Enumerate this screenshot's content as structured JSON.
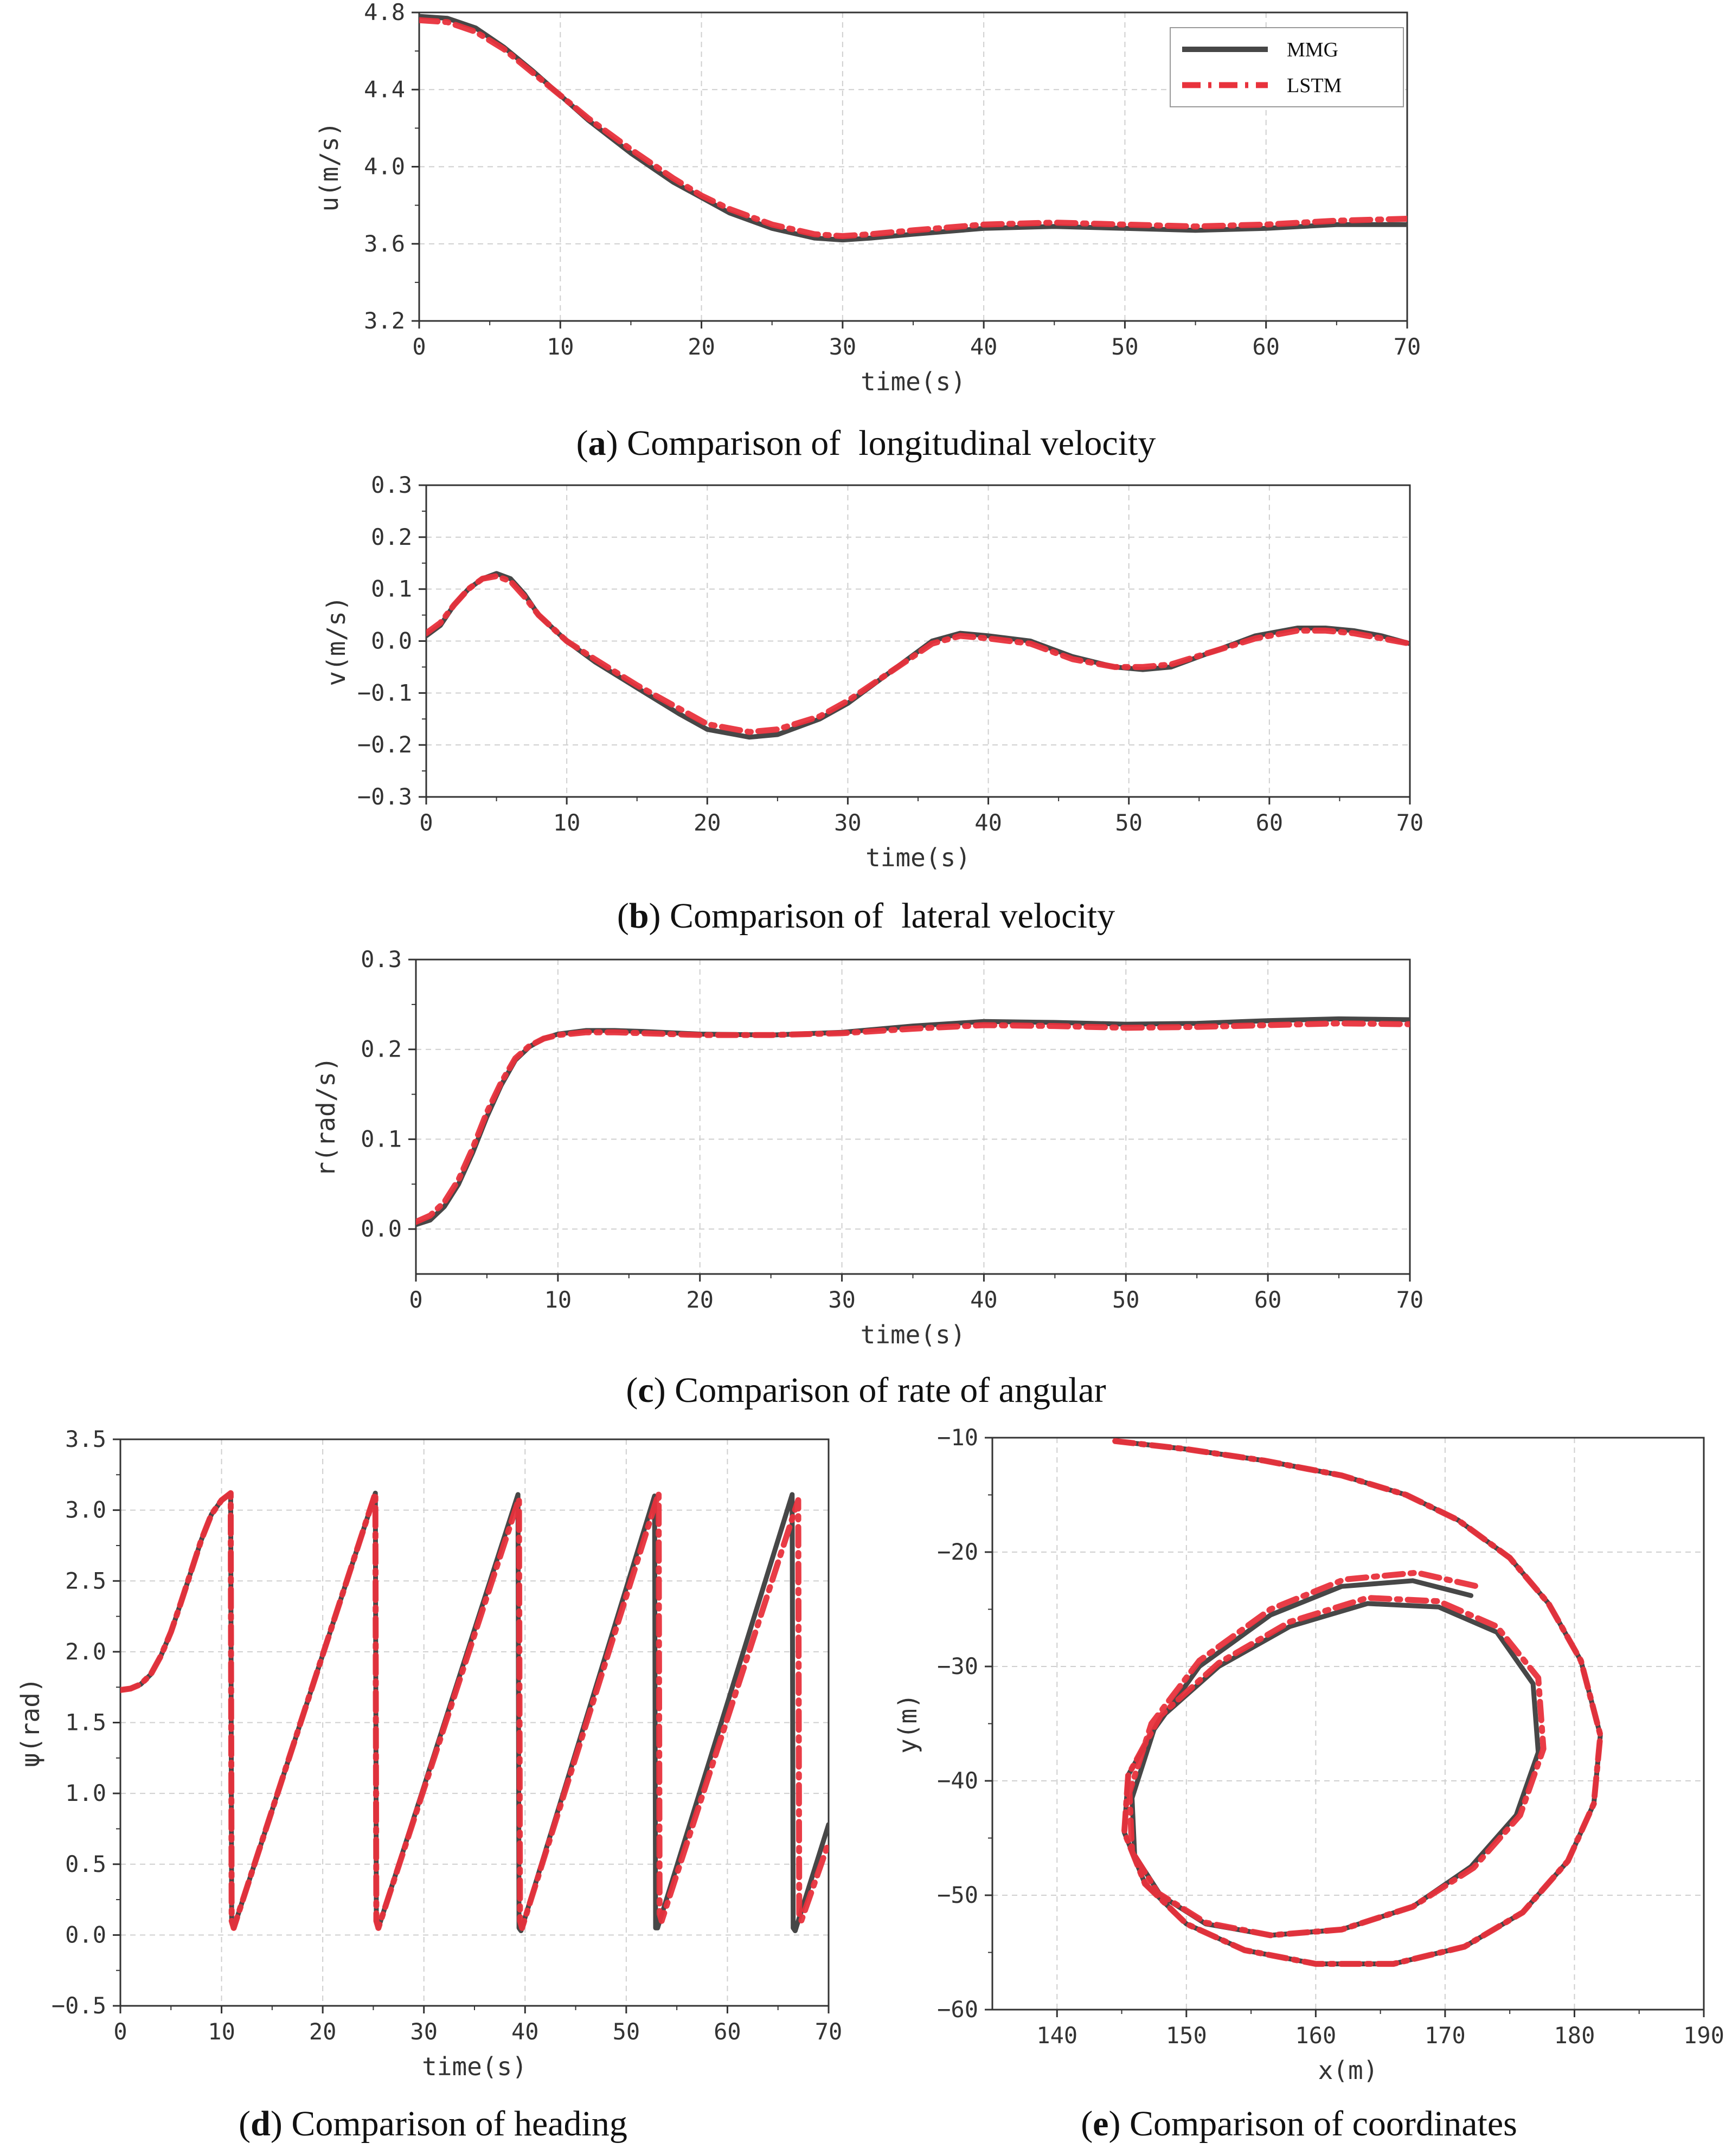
{
  "colors": {
    "mmg": "#474747",
    "lstm": "#e8323c",
    "grid": "#cfcfcf",
    "axis": "#333333"
  },
  "captions": [
    {
      "letter": "a",
      "text": " Comparison of  longitudinal velocity"
    },
    {
      "letter": "b",
      "text": " Comparison of  lateral velocity"
    },
    {
      "letter": "c",
      "text": " Comparison of rate of angular"
    },
    {
      "letter": "d",
      "text": " Comparison of heading"
    },
    {
      "letter": "e",
      "text": " Comparison of coordinates"
    }
  ],
  "chart_data": [
    {
      "type": "line",
      "panel": "a",
      "xlabel": "time(s)",
      "ylabel": "u(m/s)",
      "xlim": [
        0,
        70
      ],
      "ylim": [
        3.2,
        4.8
      ],
      "xticks": [
        0,
        10,
        20,
        30,
        40,
        50,
        60,
        70
      ],
      "yticks": [
        3.2,
        3.6,
        4.0,
        4.4,
        4.8
      ],
      "ytick_labels": [
        "3.2",
        "3.6",
        "4.0",
        "4.4",
        "4.8"
      ],
      "grid": true,
      "legend": "top-right",
      "series": [
        {
          "name": "MMG",
          "style": "solid",
          "x": [
            0,
            2,
            4,
            6,
            8,
            10,
            12,
            15,
            18,
            20,
            22,
            25,
            28,
            30,
            32,
            35,
            40,
            45,
            50,
            55,
            60,
            65,
            70
          ],
          "y": [
            4.78,
            4.77,
            4.72,
            4.62,
            4.5,
            4.37,
            4.24,
            4.07,
            3.92,
            3.84,
            3.76,
            3.68,
            3.63,
            3.62,
            3.63,
            3.65,
            3.68,
            3.69,
            3.68,
            3.67,
            3.68,
            3.7,
            3.7
          ]
        },
        {
          "name": "LSTM",
          "style": "dashdot",
          "x": [
            0,
            2,
            4,
            6,
            8,
            10,
            12,
            15,
            18,
            20,
            22,
            25,
            28,
            30,
            32,
            35,
            40,
            45,
            50,
            55,
            60,
            65,
            70
          ],
          "y": [
            4.76,
            4.75,
            4.7,
            4.61,
            4.49,
            4.37,
            4.25,
            4.09,
            3.94,
            3.85,
            3.78,
            3.7,
            3.65,
            3.64,
            3.65,
            3.67,
            3.7,
            3.71,
            3.7,
            3.69,
            3.7,
            3.72,
            3.73
          ]
        }
      ]
    },
    {
      "type": "line",
      "panel": "b",
      "xlabel": "time(s)",
      "ylabel": "v(m/s)",
      "xlim": [
        0,
        70
      ],
      "ylim": [
        -0.3,
        0.3
      ],
      "xticks": [
        0,
        10,
        20,
        30,
        40,
        50,
        60,
        70
      ],
      "yticks": [
        -0.3,
        -0.2,
        -0.1,
        0.0,
        0.1,
        0.2,
        0.3
      ],
      "ytick_labels": [
        "−0.3",
        "−0.2",
        "−0.1",
        "0.0",
        "0.1",
        "0.2",
        "0.3"
      ],
      "grid": true,
      "series": [
        {
          "name": "MMG",
          "style": "solid",
          "x": [
            0,
            1,
            2,
            3,
            4,
            5,
            6,
            7,
            8,
            10,
            12,
            15,
            18,
            20,
            22,
            23,
            25,
            28,
            30,
            33,
            36,
            38,
            40,
            43,
            46,
            49,
            51,
            53,
            56,
            59,
            62,
            64,
            66,
            68,
            70
          ],
          "y": [
            0.01,
            0.03,
            0.07,
            0.1,
            0.12,
            0.13,
            0.12,
            0.09,
            0.05,
            0.0,
            -0.04,
            -0.09,
            -0.14,
            -0.17,
            -0.18,
            -0.185,
            -0.18,
            -0.15,
            -0.12,
            -0.06,
            0.0,
            0.015,
            0.01,
            0.0,
            -0.03,
            -0.05,
            -0.055,
            -0.05,
            -0.02,
            0.01,
            0.025,
            0.025,
            0.02,
            0.01,
            -0.005
          ]
        },
        {
          "name": "LSTM",
          "style": "dashdot",
          "x": [
            0,
            1,
            2,
            3,
            4,
            5,
            6,
            7,
            8,
            10,
            12,
            15,
            18,
            20,
            22,
            23,
            25,
            28,
            30,
            33,
            36,
            38,
            40,
            43,
            46,
            49,
            51,
            53,
            56,
            59,
            62,
            64,
            66,
            68,
            70
          ],
          "y": [
            0.015,
            0.035,
            0.07,
            0.1,
            0.12,
            0.125,
            0.115,
            0.085,
            0.05,
            0.0,
            -0.035,
            -0.085,
            -0.13,
            -0.16,
            -0.17,
            -0.175,
            -0.17,
            -0.145,
            -0.115,
            -0.06,
            -0.005,
            0.01,
            0.005,
            -0.005,
            -0.035,
            -0.05,
            -0.05,
            -0.045,
            -0.02,
            0.005,
            0.02,
            0.02,
            0.015,
            0.005,
            -0.005
          ]
        }
      ]
    },
    {
      "type": "line",
      "panel": "c",
      "xlabel": "time(s)",
      "ylabel": "r(rad/s)",
      "xlim": [
        0,
        70
      ],
      "ylim": [
        -0.05,
        0.3
      ],
      "xticks": [
        0,
        10,
        20,
        30,
        40,
        50,
        60,
        70
      ],
      "yticks": [
        0.0,
        0.1,
        0.2,
        0.3
      ],
      "ytick_labels": [
        "0.0",
        "0.1",
        "0.2",
        "0.3"
      ],
      "grid": true,
      "series": [
        {
          "name": "MMG",
          "style": "solid",
          "x": [
            0,
            1,
            2,
            3,
            4,
            5,
            6,
            7,
            8,
            9,
            10,
            12,
            14,
            16,
            20,
            25,
            30,
            35,
            40,
            45,
            50,
            55,
            60,
            65,
            70
          ],
          "y": [
            0.005,
            0.01,
            0.025,
            0.05,
            0.085,
            0.125,
            0.16,
            0.188,
            0.203,
            0.212,
            0.217,
            0.221,
            0.221,
            0.22,
            0.217,
            0.216,
            0.219,
            0.226,
            0.231,
            0.23,
            0.228,
            0.229,
            0.232,
            0.234,
            0.233
          ]
        },
        {
          "name": "LSTM",
          "style": "dashdot",
          "x": [
            0,
            1,
            2,
            3,
            4,
            5,
            6,
            7,
            8,
            9,
            10,
            12,
            14,
            16,
            20,
            25,
            30,
            35,
            40,
            45,
            50,
            55,
            60,
            65,
            70
          ],
          "y": [
            0.008,
            0.015,
            0.03,
            0.055,
            0.09,
            0.13,
            0.163,
            0.19,
            0.204,
            0.212,
            0.216,
            0.219,
            0.219,
            0.218,
            0.216,
            0.216,
            0.218,
            0.223,
            0.227,
            0.226,
            0.224,
            0.225,
            0.227,
            0.229,
            0.228
          ]
        }
      ]
    },
    {
      "type": "line",
      "panel": "d",
      "xlabel": "time(s)",
      "ylabel": "ψ(rad)",
      "xlim": [
        0,
        70
      ],
      "ylim": [
        -0.5,
        3.5
      ],
      "xticks": [
        0,
        10,
        20,
        30,
        40,
        50,
        60,
        70
      ],
      "yticks": [
        -0.5,
        0.0,
        0.5,
        1.0,
        1.5,
        2.0,
        2.5,
        3.0,
        3.5
      ],
      "ytick_labels": [
        "−0.5",
        "0.0",
        "0.5",
        "1.0",
        "1.5",
        "2.0",
        "2.5",
        "3.0",
        "3.5"
      ],
      "grid": true,
      "series": [
        {
          "name": "MMG",
          "style": "solid",
          "x": [
            0,
            1,
            2,
            3,
            4,
            5,
            6,
            7,
            8,
            9,
            10,
            10.9,
            11.0,
            11.2,
            25.2,
            25.3,
            25.5,
            39.3,
            39.4,
            39.6,
            52.8,
            52.9,
            53.1,
            66.4,
            66.5,
            66.7,
            70
          ],
          "y": [
            1.73,
            1.74,
            1.77,
            1.84,
            1.97,
            2.14,
            2.35,
            2.57,
            2.79,
            2.97,
            3.07,
            3.12,
            0.1,
            0.05,
            3.12,
            0.1,
            0.05,
            3.11,
            0.05,
            0.03,
            3.1,
            0.05,
            0.05,
            3.11,
            0.05,
            0.03,
            0.78
          ]
        },
        {
          "name": "LSTM",
          "style": "dashdot",
          "x": [
            0,
            1,
            2,
            3,
            4,
            5,
            6,
            7,
            8,
            9,
            10,
            10.9,
            11.0,
            11.2,
            25.2,
            25.3,
            25.5,
            39.4,
            39.5,
            39.7,
            53.2,
            53.3,
            53.5,
            67.0,
            67.1,
            67.3,
            70
          ],
          "y": [
            1.73,
            1.74,
            1.77,
            1.84,
            1.97,
            2.14,
            2.35,
            2.57,
            2.79,
            2.97,
            3.07,
            3.12,
            0.1,
            0.05,
            3.12,
            0.1,
            0.05,
            3.08,
            0.1,
            0.05,
            3.12,
            0.15,
            0.1,
            3.07,
            0.15,
            0.1,
            0.65
          ]
        }
      ]
    },
    {
      "type": "line",
      "panel": "e",
      "xlabel": "x(m)",
      "ylabel": "y(m)",
      "xlim": [
        135,
        190
      ],
      "ylim": [
        -60,
        -10
      ],
      "xticks": [
        140,
        150,
        160,
        170,
        180,
        190
      ],
      "yticks": [
        -60,
        -50,
        -40,
        -30,
        -20,
        -10
      ],
      "ytick_labels": [
        "−60",
        "−50",
        "−40",
        "−30",
        "−20",
        "−10"
      ],
      "grid": true,
      "series": [
        {
          "name": "MMG",
          "style": "solid",
          "x": [
            144.5,
            150,
            156,
            162,
            167,
            171,
            175,
            178,
            180.5,
            182,
            181.5,
            179.5,
            176,
            171.5,
            166,
            160,
            154.5,
            150,
            146.8,
            145.2,
            145.5,
            148,
            152.5,
            158,
            164,
            169.5,
            174,
            176.8,
            177.2,
            175.5,
            172,
            167.5,
            162,
            156.5,
            151.5,
            148,
            146,
            145.8,
            147.5,
            151,
            156.5,
            162,
            167.5,
            172
          ],
          "y": [
            -10.3,
            -11.0,
            -12.0,
            -13.3,
            -15.0,
            -17.2,
            -20.5,
            -24.5,
            -29.5,
            -36.0,
            -42.0,
            -47.0,
            -51.5,
            -54.5,
            -56.0,
            -56.0,
            -54.8,
            -52.5,
            -49.0,
            -44.5,
            -39.5,
            -34.5,
            -30.0,
            -26.5,
            -24.5,
            -24.8,
            -27.0,
            -31.5,
            -37.5,
            -43.0,
            -47.5,
            -51.0,
            -53.0,
            -53.5,
            -52.5,
            -50.0,
            -46.5,
            -41.5,
            -35.5,
            -30.0,
            -25.5,
            -23.0,
            -22.5,
            -23.8
          ]
        },
        {
          "name": "LSTM",
          "style": "dashdot",
          "x": [
            144.5,
            150,
            156,
            162,
            167,
            171,
            175,
            178,
            180.5,
            182,
            181.5,
            179.5,
            176,
            171.5,
            166,
            160,
            154.5,
            150,
            146.8,
            145.2,
            145.5,
            148,
            152.5,
            158,
            164,
            169.5,
            174,
            177.2,
            177.6,
            175.8,
            172.2,
            167.5,
            162,
            156.5,
            151.5,
            147.8,
            145.8,
            145.6,
            147.3,
            151,
            156.5,
            162.2,
            167.8,
            172.5
          ],
          "y": [
            -10.3,
            -11.0,
            -12.0,
            -13.3,
            -15.0,
            -17.2,
            -20.5,
            -24.5,
            -29.5,
            -36.0,
            -42.0,
            -47.0,
            -51.5,
            -54.5,
            -56.0,
            -56.0,
            -54.8,
            -52.5,
            -49.0,
            -44.5,
            -39.5,
            -34.3,
            -29.7,
            -26.1,
            -24.0,
            -24.3,
            -26.5,
            -31.0,
            -37.2,
            -43.0,
            -47.6,
            -51.0,
            -53.0,
            -53.5,
            -52.4,
            -49.8,
            -46.2,
            -41.0,
            -35.0,
            -29.5,
            -25.0,
            -22.4,
            -21.8,
            -23.0
          ]
        }
      ]
    }
  ]
}
